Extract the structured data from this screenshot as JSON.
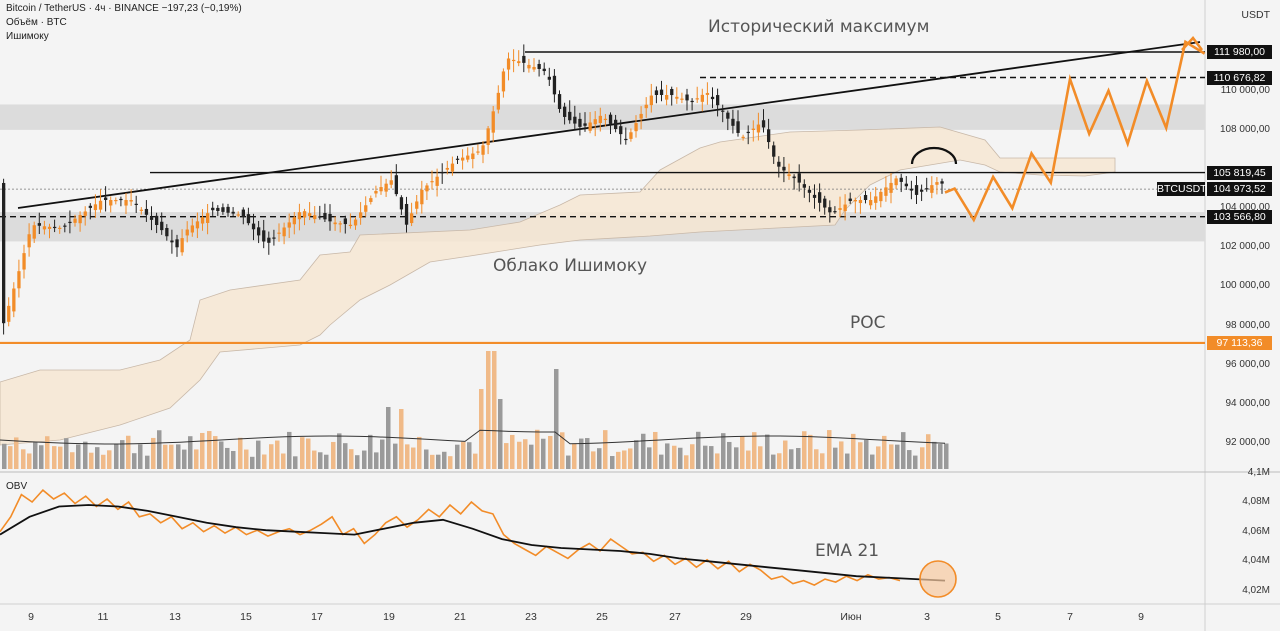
{
  "header": {
    "symbol_line": "Bitcoin / TetherUS · 4ч · BINANCE  −197,23 (−0,19%)",
    "volume_line": "Объём · BTC",
    "ichimoku_line": "Ишимоку",
    "currency": "USDT",
    "obv_label": "OBV"
  },
  "annotations": {
    "ath": "Исторический максимум",
    "cloud": "Облако Ишимоку",
    "poc": "POC",
    "ema": "EMA 21"
  },
  "colors": {
    "bull": "#f28c28",
    "bear": "#222222",
    "cloud_fill": "#f6e6d2",
    "zone": "#dcdcdc",
    "projection": "#f28c28"
  },
  "chart_data": [
    {
      "type": "candlestick",
      "title": "Bitcoin / TetherUS · 4ч · BINANCE",
      "ylabel": "USDT",
      "ylim": [
        90000,
        113000
      ],
      "y_ticks": [
        "110 000,00",
        "108 000,00",
        "104 000,00",
        "102 000,00",
        "100 000,00",
        "98 000,00",
        "96 000,00",
        "94 000,00",
        "92 000,00"
      ],
      "x_ticks": [
        "9",
        "11",
        "13",
        "15",
        "17",
        "19",
        "21",
        "23",
        "25",
        "27",
        "29",
        "Июн",
        "3",
        "5",
        "7",
        "9"
      ],
      "levels": [
        {
          "label": "111 980,00",
          "value": 111980,
          "style": "solid",
          "tag": "black"
        },
        {
          "label": "110 676,82",
          "value": 110676.82,
          "style": "dashed",
          "tag": "black"
        },
        {
          "label": "105 819,45",
          "value": 105819.45,
          "style": "solid",
          "tag": "black"
        },
        {
          "label": "104 973,52",
          "value": 104973.52,
          "style": "dotted",
          "tag": "black",
          "name": "BTCUSDT"
        },
        {
          "label": "103 566,80",
          "value": 103566.8,
          "style": "dashed",
          "tag": "black"
        },
        {
          "label": "97 113,36",
          "value": 97113.36,
          "style": "solid",
          "tag": "orange",
          "name": "POC"
        }
      ],
      "zones": [
        [
          108000,
          109300
        ],
        [
          102300,
          103800
        ]
      ],
      "trendline": [
        {
          "x": "8 мая",
          "y": 104100
        },
        {
          "x": "10 июня",
          "y": 112400
        }
      ],
      "projection": [
        105000,
        103400,
        105600,
        104000,
        106800,
        105300,
        110600,
        107800,
        110000,
        107300,
        110500,
        108100,
        112500,
        111900
      ],
      "series": [
        {
          "name": "BTCUSDT",
          "kind": "price"
        },
        {
          "name": "Объём",
          "kind": "volume"
        },
        {
          "name": "Ишимоку",
          "kind": "cloud"
        }
      ]
    },
    {
      "type": "line",
      "title": "OBV",
      "ylim": [
        4.01,
        4.095
      ],
      "y_ticks": [
        "4,1M",
        "4,08M",
        "4,06M",
        "4,04M",
        "4,02M"
      ],
      "series": [
        {
          "name": "OBV",
          "values": [
            4.06,
            4.07,
            4.085,
            4.08,
            4.088,
            4.082,
            4.086,
            4.079,
            4.084,
            4.077,
            4.082,
            4.075,
            4.08,
            4.07,
            4.072,
            4.066,
            4.07,
            4.062,
            4.066,
            4.06,
            4.064,
            4.059,
            4.063,
            4.058,
            4.061,
            4.057,
            4.06,
            4.062,
            4.058,
            4.061,
            4.065,
            4.07,
            4.058,
            4.062,
            4.052,
            4.058,
            4.066,
            4.07,
            4.063,
            4.068,
            4.075,
            4.07,
            4.078,
            4.072,
            4.08,
            4.074,
            4.072,
            4.058,
            4.052,
            4.048,
            4.044,
            4.05,
            4.046,
            4.042,
            4.048,
            4.052,
            4.047,
            4.055,
            4.05,
            4.045,
            4.046,
            4.04,
            4.044,
            4.038,
            4.042,
            4.036,
            4.041,
            4.035,
            4.04,
            4.033,
            4.038,
            4.034,
            4.028,
            4.03,
            4.025,
            4.027,
            4.024,
            4.028,
            4.026,
            4.03,
            4.027,
            4.031,
            4.028,
            4.029,
            4.027
          ]
        },
        {
          "name": "EMA 21",
          "values": [
            4.058,
            4.07,
            4.077,
            4.078,
            4.077,
            4.074,
            4.07,
            4.066,
            4.063,
            4.061,
            4.06,
            4.059,
            4.058,
            4.062,
            4.066,
            4.068,
            4.062,
            4.055,
            4.051,
            4.049,
            4.048,
            4.047,
            4.045,
            4.042,
            4.04,
            4.038,
            4.036,
            4.034,
            4.032,
            4.03,
            4.029,
            4.028,
            4.027
          ]
        }
      ]
    }
  ]
}
